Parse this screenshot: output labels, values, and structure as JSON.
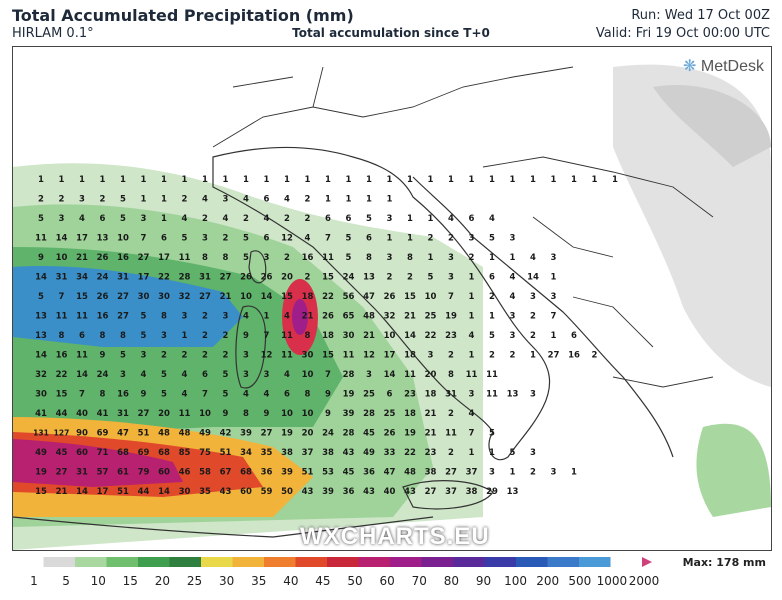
{
  "header": {
    "title": "Total Accumulated Precipitation (mm)",
    "model": "HIRLAM 0.1°",
    "subtitle": "Total accumulation since T+0",
    "run": "Run: Wed 17 Oct 00Z",
    "valid": "Valid: Fri 19 Oct 00:00 UTC"
  },
  "branding": {
    "logo_text": "MetDesk",
    "watermark": "WXCHARTS.EU"
  },
  "legend": {
    "max_label": "Max: 178 mm",
    "ticks": [
      "1",
      "5",
      "10",
      "15",
      "20",
      "25",
      "30",
      "35",
      "40",
      "45",
      "50",
      "60",
      "70",
      "80",
      "90",
      "100",
      "200",
      "500",
      "1000",
      "2000"
    ],
    "colors": [
      "#ffffff",
      "#d9d9d9",
      "#a8d8a0",
      "#6fbf6f",
      "#3f9f4f",
      "#2f7f3f",
      "#e8d84a",
      "#f2b33b",
      "#ef7f2f",
      "#e04a2a",
      "#c8283a",
      "#b82070",
      "#a01e8a",
      "#7a2090",
      "#5a2a9a",
      "#3a3aa8",
      "#2a5ab8",
      "#3a7ac8",
      "#4a9ad8",
      "#ffffff"
    ],
    "colors_note": "",
    "arrow_color": "#d0407a"
  },
  "colors": {
    "land": "#ffffff",
    "sea_rain_light": "#cfe6c9",
    "rain_heavy": "#d8304a",
    "border": "#333333"
  },
  "map_numbers": {
    "rows": [
      [
        "1",
        "1",
        "1",
        "1",
        "1",
        "1",
        "1",
        "1",
        "1",
        "1",
        "1",
        "1",
        "1",
        "1",
        "1",
        "1",
        "1",
        "1",
        "1",
        "1",
        "1",
        "1",
        "1",
        "1",
        "1",
        "1",
        "1",
        "1",
        "1"
      ],
      [
        "2",
        "2",
        "3",
        "2",
        "5",
        "1",
        "1",
        "2",
        "4",
        "3",
        "4",
        "6",
        "4",
        "2",
        "1",
        "1",
        "1",
        "1"
      ],
      [
        "5",
        "3",
        "4",
        "6",
        "5",
        "3",
        "1",
        "4",
        "2",
        "4",
        "2",
        "4",
        "2",
        "2",
        "6",
        "6",
        "5",
        "3",
        "1",
        "1",
        "4",
        "6",
        "4"
      ],
      [
        "11",
        "14",
        "17",
        "13",
        "10",
        "7",
        "6",
        "5",
        "3",
        "2",
        "5",
        "6",
        "12",
        "4",
        "7",
        "5",
        "6",
        "1",
        "1",
        "2",
        "2",
        "3",
        "5",
        "3"
      ],
      [
        "9",
        "10",
        "21",
        "26",
        "16",
        "27",
        "17",
        "11",
        "8",
        "8",
        "5",
        "3",
        "2",
        "16",
        "11",
        "5",
        "8",
        "3",
        "8",
        "1",
        "3",
        "2",
        "1",
        "1",
        "4",
        "3"
      ],
      [
        "14",
        "31",
        "34",
        "24",
        "31",
        "17",
        "22",
        "28",
        "31",
        "27",
        "26",
        "26",
        "20",
        "2",
        "15",
        "24",
        "13",
        "2",
        "2",
        "5",
        "3",
        "1",
        "6",
        "4",
        "14",
        "1"
      ],
      [
        "5",
        "7",
        "15",
        "26",
        "27",
        "30",
        "30",
        "32",
        "27",
        "21",
        "10",
        "14",
        "15",
        "18",
        "22",
        "56",
        "47",
        "26",
        "15",
        "10",
        "7",
        "1",
        "2",
        "4",
        "3",
        "3"
      ],
      [
        "13",
        "11",
        "11",
        "16",
        "27",
        "5",
        "8",
        "3",
        "2",
        "3",
        "4",
        "1",
        "4",
        "21",
        "26",
        "65",
        "48",
        "32",
        "21",
        "25",
        "19",
        "1",
        "1",
        "3",
        "2",
        "7"
      ],
      [
        "13",
        "8",
        "6",
        "8",
        "8",
        "5",
        "3",
        "1",
        "2",
        "2",
        "9",
        "7",
        "11",
        "8",
        "18",
        "30",
        "21",
        "10",
        "14",
        "22",
        "23",
        "4",
        "5",
        "3",
        "2",
        "1",
        "6"
      ],
      [
        "14",
        "16",
        "11",
        "9",
        "5",
        "3",
        "2",
        "2",
        "2",
        "2",
        "3",
        "12",
        "11",
        "30",
        "15",
        "11",
        "12",
        "17",
        "18",
        "3",
        "2",
        "1",
        "2",
        "2",
        "1",
        "27",
        "16",
        "2"
      ],
      [
        "32",
        "22",
        "14",
        "24",
        "3",
        "4",
        "5",
        "4",
        "6",
        "5",
        "3",
        "3",
        "4",
        "10",
        "7",
        "28",
        "3",
        "14",
        "11",
        "20",
        "8",
        "11",
        "11"
      ],
      [
        "30",
        "15",
        "7",
        "8",
        "16",
        "9",
        "5",
        "4",
        "7",
        "5",
        "4",
        "4",
        "6",
        "8",
        "9",
        "19",
        "25",
        "6",
        "23",
        "18",
        "31",
        "3",
        "11",
        "13",
        "3"
      ],
      [
        "41",
        "44",
        "40",
        "41",
        "31",
        "27",
        "20",
        "11",
        "10",
        "9",
        "8",
        "9",
        "10",
        "10",
        "9",
        "39",
        "28",
        "25",
        "18",
        "21",
        "2",
        "4"
      ],
      [
        "131",
        "127",
        "90",
        "69",
        "47",
        "51",
        "48",
        "48",
        "49",
        "42",
        "39",
        "27",
        "19",
        "20",
        "24",
        "28",
        "45",
        "26",
        "19",
        "21",
        "11",
        "7",
        "5"
      ],
      [
        "49",
        "45",
        "60",
        "71",
        "68",
        "69",
        "68",
        "85",
        "75",
        "51",
        "34",
        "35",
        "38",
        "37",
        "38",
        "43",
        "49",
        "33",
        "22",
        "23",
        "2",
        "1",
        "1",
        "5",
        "3"
      ],
      [
        "19",
        "27",
        "31",
        "57",
        "61",
        "79",
        "60",
        "46",
        "58",
        "67",
        "68",
        "36",
        "39",
        "51",
        "53",
        "45",
        "36",
        "47",
        "48",
        "38",
        "27",
        "37",
        "3",
        "1",
        "2",
        "3",
        "1"
      ],
      [
        "15",
        "21",
        "14",
        "17",
        "51",
        "44",
        "14",
        "30",
        "35",
        "43",
        "60",
        "59",
        "50",
        "43",
        "39",
        "36",
        "43",
        "40",
        "43",
        "27",
        "37",
        "38",
        "29",
        "13"
      ]
    ]
  }
}
